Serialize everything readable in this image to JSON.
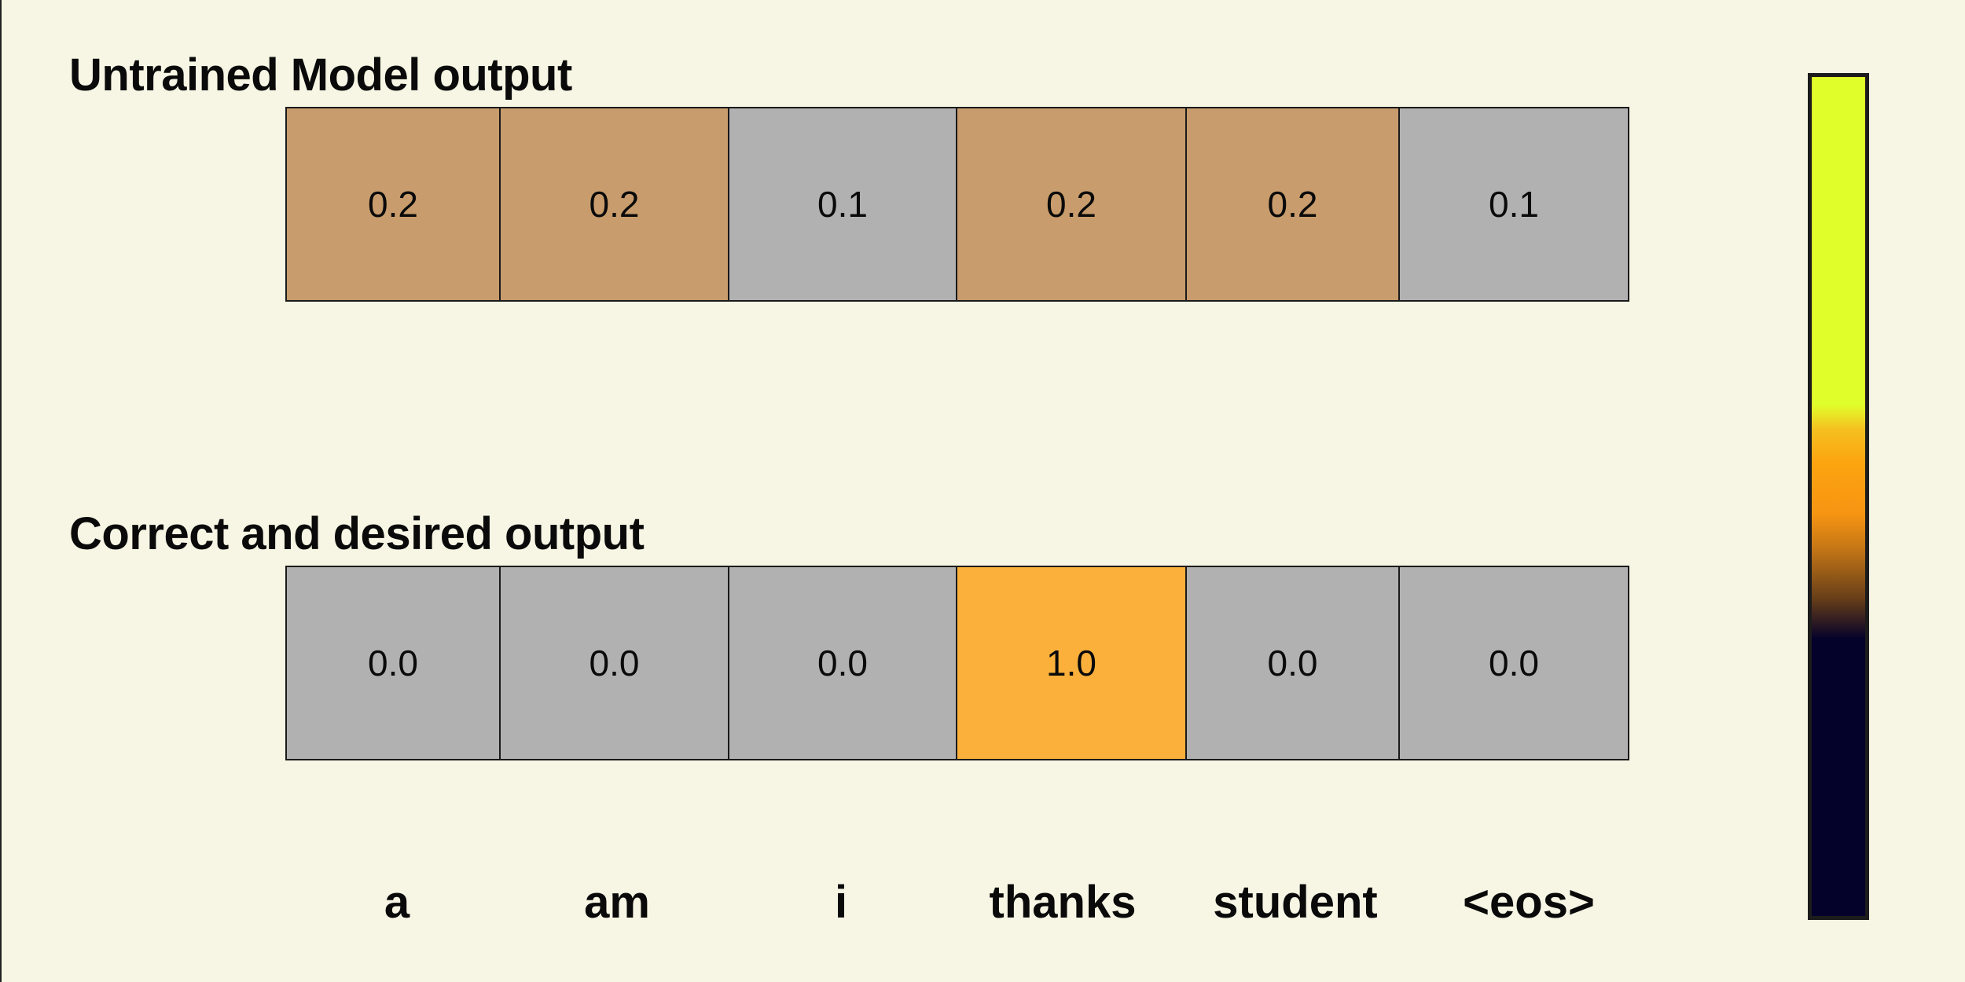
{
  "sections": {
    "untrained": {
      "title": "Untrained Model output",
      "values": [
        "0.2",
        "0.2",
        "0.1",
        "0.2",
        "0.2",
        "0.1"
      ]
    },
    "correct": {
      "title": "Correct and desired output",
      "values": [
        "0.0",
        "0.0",
        "0.0",
        "1.0",
        "0.0",
        "0.0"
      ]
    }
  },
  "vocabulary": [
    "a",
    "am",
    "i",
    "thanks",
    "student",
    "<eos>"
  ],
  "colors": {
    "background": "#f7f6e4",
    "cell_gray": "#b1b1b1",
    "cell_tan": "#c89c6c",
    "cell_orange": "#fbb03b"
  }
}
